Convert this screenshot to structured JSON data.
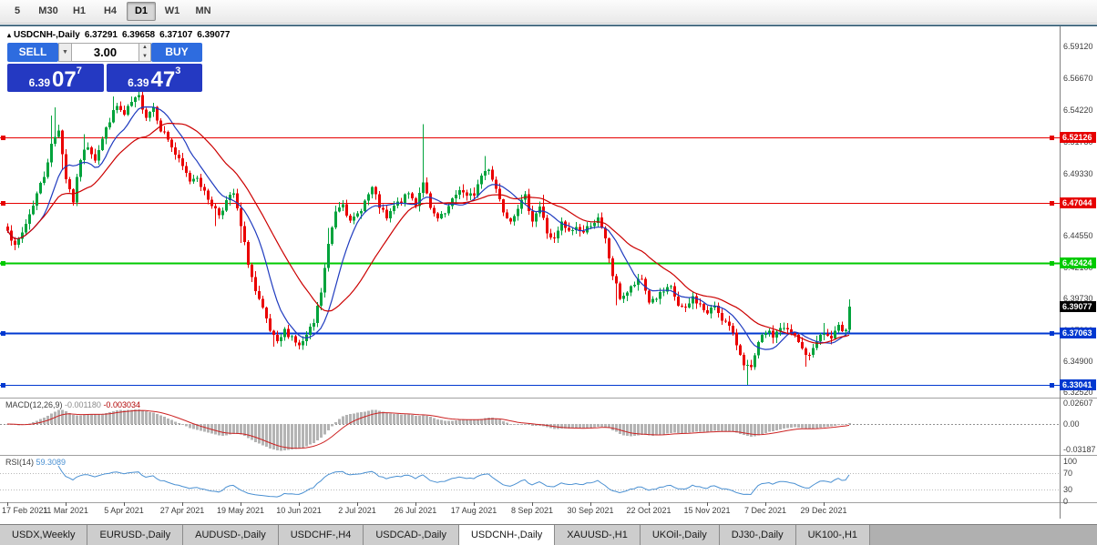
{
  "toolbar": {
    "timeframes": [
      "5",
      "M30",
      "H1",
      "H4",
      "D1",
      "W1",
      "MN"
    ],
    "active": "D1"
  },
  "header": {
    "collapse_icon": "▴",
    "symbol": "USDCNH-,Daily",
    "open": "6.37291",
    "high": "6.39658",
    "low": "6.37107",
    "close": "6.39077"
  },
  "trade": {
    "sell_label": "SELL",
    "buy_label": "BUY",
    "volume": "3.00",
    "dropdown_icon": "▼",
    "spin_up": "▲",
    "spin_down": "▼",
    "sell_price": {
      "prefix": "6.39",
      "main": "07",
      "sup": "7"
    },
    "buy_price": {
      "prefix": "6.39",
      "main": "47",
      "sup": "3"
    }
  },
  "colors": {
    "buy_sell_button": "#2e6cdf",
    "price_box": "#2439c2",
    "up_candle": "#00a33c",
    "down_candle": "#ea0000",
    "ma_fast": "#1f3bbf",
    "ma_slow": "#cc0000",
    "macd_hist": "#b4b4b4",
    "macd_signal": "#cc2222",
    "rsi_line": "#4a90d2",
    "level_red": "#e60000",
    "level_green": "#00ca00",
    "level_blue": "#0038d0",
    "current_price_bg": "#000000"
  },
  "price_axis": {
    "ticks": [
      "6.59120",
      "6.56670",
      "6.54220",
      "6.51780",
      "6.49330",
      "6.46890",
      "6.44550",
      "6.42100",
      "6.39730",
      "6.37290",
      "6.34900",
      "6.32520"
    ]
  },
  "price_lines": [
    {
      "label": "6.52126",
      "value": 6.52126,
      "color": "#e60000",
      "width": 1
    },
    {
      "label": "6.47044",
      "value": 6.47044,
      "color": "#e60000",
      "width": 1
    },
    {
      "label": "6.42424",
      "value": 6.42424,
      "color": "#00ca00",
      "width": 2
    },
    {
      "label": "6.37063",
      "value": 6.37063,
      "color": "#0038d0",
      "width": 2
    },
    {
      "label": "6.33041",
      "value": 6.33041,
      "color": "#0038d0",
      "width": 1
    }
  ],
  "current_price": {
    "label": "6.39077",
    "value": 6.39077
  },
  "macd": {
    "label": "MACD(12,26,9)",
    "value_main": "-0.001180",
    "value_signal": "-0.003034",
    "axis": [
      "0.02607",
      "0.00",
      "-0.03187"
    ],
    "axis_values": [
      0.02607,
      0,
      -0.03187
    ]
  },
  "rsi": {
    "label": "RSI(14)",
    "value": "59.3089",
    "axis": [
      "100",
      "70",
      "30",
      "0"
    ],
    "axis_values": [
      100,
      70,
      30,
      0
    ],
    "levels": [
      70,
      30
    ]
  },
  "date_axis": [
    "17 Feb 2021",
    "11 Mar 2021",
    "5 Apr 2021",
    "27 Apr 2021",
    "19 May 2021",
    "10 Jun 2021",
    "2 Jul 2021",
    "26 Jul 2021",
    "17 Aug 2021",
    "8 Sep 2021",
    "30 Sep 2021",
    "22 Oct 2021",
    "15 Nov 2021",
    "7 Dec 2021",
    "29 Dec 2021"
  ],
  "tabs": {
    "items": [
      "USDX,Weekly",
      "EURUSD-,Daily",
      "AUDUSD-,Daily",
      "USDCHF-,H4",
      "USDCAD-,Daily",
      "USDCNH-,Daily",
      "XAUUSD-,H1",
      "UKOil-,Daily",
      "DJ30-,Daily",
      "UK100-,H1"
    ],
    "active": "USDCNH-,Daily"
  },
  "chart_data": {
    "type": "candlestick",
    "symbol": "USDCNH-",
    "timeframe": "Daily",
    "bars": 232,
    "price_max": 6.606,
    "price_min": 6.3208,
    "last_bar": {
      "open": 6.37291,
      "high": 6.39658,
      "low": 6.37107,
      "close": 6.39077
    },
    "horizontal_levels": [
      6.52126,
      6.47044,
      6.42424,
      6.37063,
      6.33041
    ],
    "indicators": {
      "ma_fast_period": 10,
      "ma_slow_period": 24,
      "macd": [
        12,
        26,
        9
      ],
      "rsi_period": 14
    },
    "close_anchors": [
      [
        0,
        6.452
      ],
      [
        2,
        6.436
      ],
      [
        4,
        6.448
      ],
      [
        6,
        6.462
      ],
      [
        8,
        6.478
      ],
      [
        10,
        6.492
      ],
      [
        12,
        6.515
      ],
      [
        14,
        6.528
      ],
      [
        16,
        6.49
      ],
      [
        18,
        6.472
      ],
      [
        20,
        6.505
      ],
      [
        22,
        6.515
      ],
      [
        24,
        6.505
      ],
      [
        26,
        6.52
      ],
      [
        28,
        6.535
      ],
      [
        30,
        6.545
      ],
      [
        32,
        6.538
      ],
      [
        34,
        6.548
      ],
      [
        36,
        6.552
      ],
      [
        38,
        6.538
      ],
      [
        40,
        6.545
      ],
      [
        42,
        6.528
      ],
      [
        44,
        6.52
      ],
      [
        46,
        6.508
      ],
      [
        48,
        6.498
      ],
      [
        50,
        6.488
      ],
      [
        52,
        6.492
      ],
      [
        54,
        6.478
      ],
      [
        56,
        6.47
      ],
      [
        58,
        6.462
      ],
      [
        60,
        6.472
      ],
      [
        62,
        6.478
      ],
      [
        64,
        6.452
      ],
      [
        66,
        6.425
      ],
      [
        68,
        6.402
      ],
      [
        70,
        6.388
      ],
      [
        72,
        6.372
      ],
      [
        74,
        6.362
      ],
      [
        76,
        6.372
      ],
      [
        78,
        6.368
      ],
      [
        80,
        6.36
      ],
      [
        82,
        6.368
      ],
      [
        84,
        6.378
      ],
      [
        86,
        6.402
      ],
      [
        88,
        6.438
      ],
      [
        90,
        6.465
      ],
      [
        92,
        6.472
      ],
      [
        94,
        6.455
      ],
      [
        96,
        6.462
      ],
      [
        98,
        6.472
      ],
      [
        100,
        6.482
      ],
      [
        102,
        6.468
      ],
      [
        104,
        6.458
      ],
      [
        106,
        6.468
      ],
      [
        108,
        6.472
      ],
      [
        110,
        6.478
      ],
      [
        112,
        6.47
      ],
      [
        114,
        6.488
      ],
      [
        116,
        6.465
      ],
      [
        118,
        6.458
      ],
      [
        120,
        6.462
      ],
      [
        122,
        6.472
      ],
      [
        124,
        6.482
      ],
      [
        126,
        6.475
      ],
      [
        128,
        6.478
      ],
      [
        130,
        6.492
      ],
      [
        132,
        6.498
      ],
      [
        134,
        6.482
      ],
      [
        136,
        6.465
      ],
      [
        138,
        6.458
      ],
      [
        140,
        6.468
      ],
      [
        142,
        6.475
      ],
      [
        144,
        6.458
      ],
      [
        146,
        6.468
      ],
      [
        148,
        6.448
      ],
      [
        150,
        6.442
      ],
      [
        152,
        6.455
      ],
      [
        154,
        6.448
      ],
      [
        156,
        6.452
      ],
      [
        158,
        6.448
      ],
      [
        160,
        6.455
      ],
      [
        162,
        6.458
      ],
      [
        164,
        6.442
      ],
      [
        166,
        6.415
      ],
      [
        168,
        6.398
      ],
      [
        170,
        6.402
      ],
      [
        172,
        6.408
      ],
      [
        174,
        6.412
      ],
      [
        176,
        6.395
      ],
      [
        178,
        6.398
      ],
      [
        180,
        6.402
      ],
      [
        182,
        6.405
      ],
      [
        184,
        6.392
      ],
      [
        186,
        6.388
      ],
      [
        188,
        6.398
      ],
      [
        190,
        6.392
      ],
      [
        192,
        6.385
      ],
      [
        194,
        6.392
      ],
      [
        196,
        6.382
      ],
      [
        198,
        6.375
      ],
      [
        200,
        6.362
      ],
      [
        202,
        6.348
      ],
      [
        204,
        6.342
      ],
      [
        206,
        6.362
      ],
      [
        208,
        6.372
      ],
      [
        210,
        6.368
      ],
      [
        212,
        6.375
      ],
      [
        214,
        6.372
      ],
      [
        216,
        6.368
      ],
      [
        218,
        6.358
      ],
      [
        220,
        6.352
      ],
      [
        222,
        6.366
      ],
      [
        224,
        6.37
      ],
      [
        226,
        6.366
      ],
      [
        228,
        6.3745
      ],
      [
        230,
        6.3729
      ],
      [
        231,
        6.39077
      ]
    ],
    "wick_spikes": [
      {
        "i": 12,
        "h": 0.018
      },
      {
        "i": 13,
        "h": 0.022
      },
      {
        "i": 15,
        "l": 0.01
      },
      {
        "i": 21,
        "h": 0.01
      },
      {
        "i": 29,
        "h": 0.008
      },
      {
        "i": 36,
        "h": 0.006
      },
      {
        "i": 57,
        "l": 0.01
      },
      {
        "i": 64,
        "l": 0.012
      },
      {
        "i": 73,
        "l": 0.007
      },
      {
        "i": 88,
        "h": 0.009
      },
      {
        "i": 114,
        "h": 0.042
      },
      {
        "i": 131,
        "h": 0.01
      },
      {
        "i": 147,
        "h": 0.007
      },
      {
        "i": 167,
        "l": 0.013
      },
      {
        "i": 203,
        "l": 0.011
      },
      {
        "i": 219,
        "l": 0.007
      },
      {
        "i": 224,
        "h": 0.006
      }
    ]
  }
}
